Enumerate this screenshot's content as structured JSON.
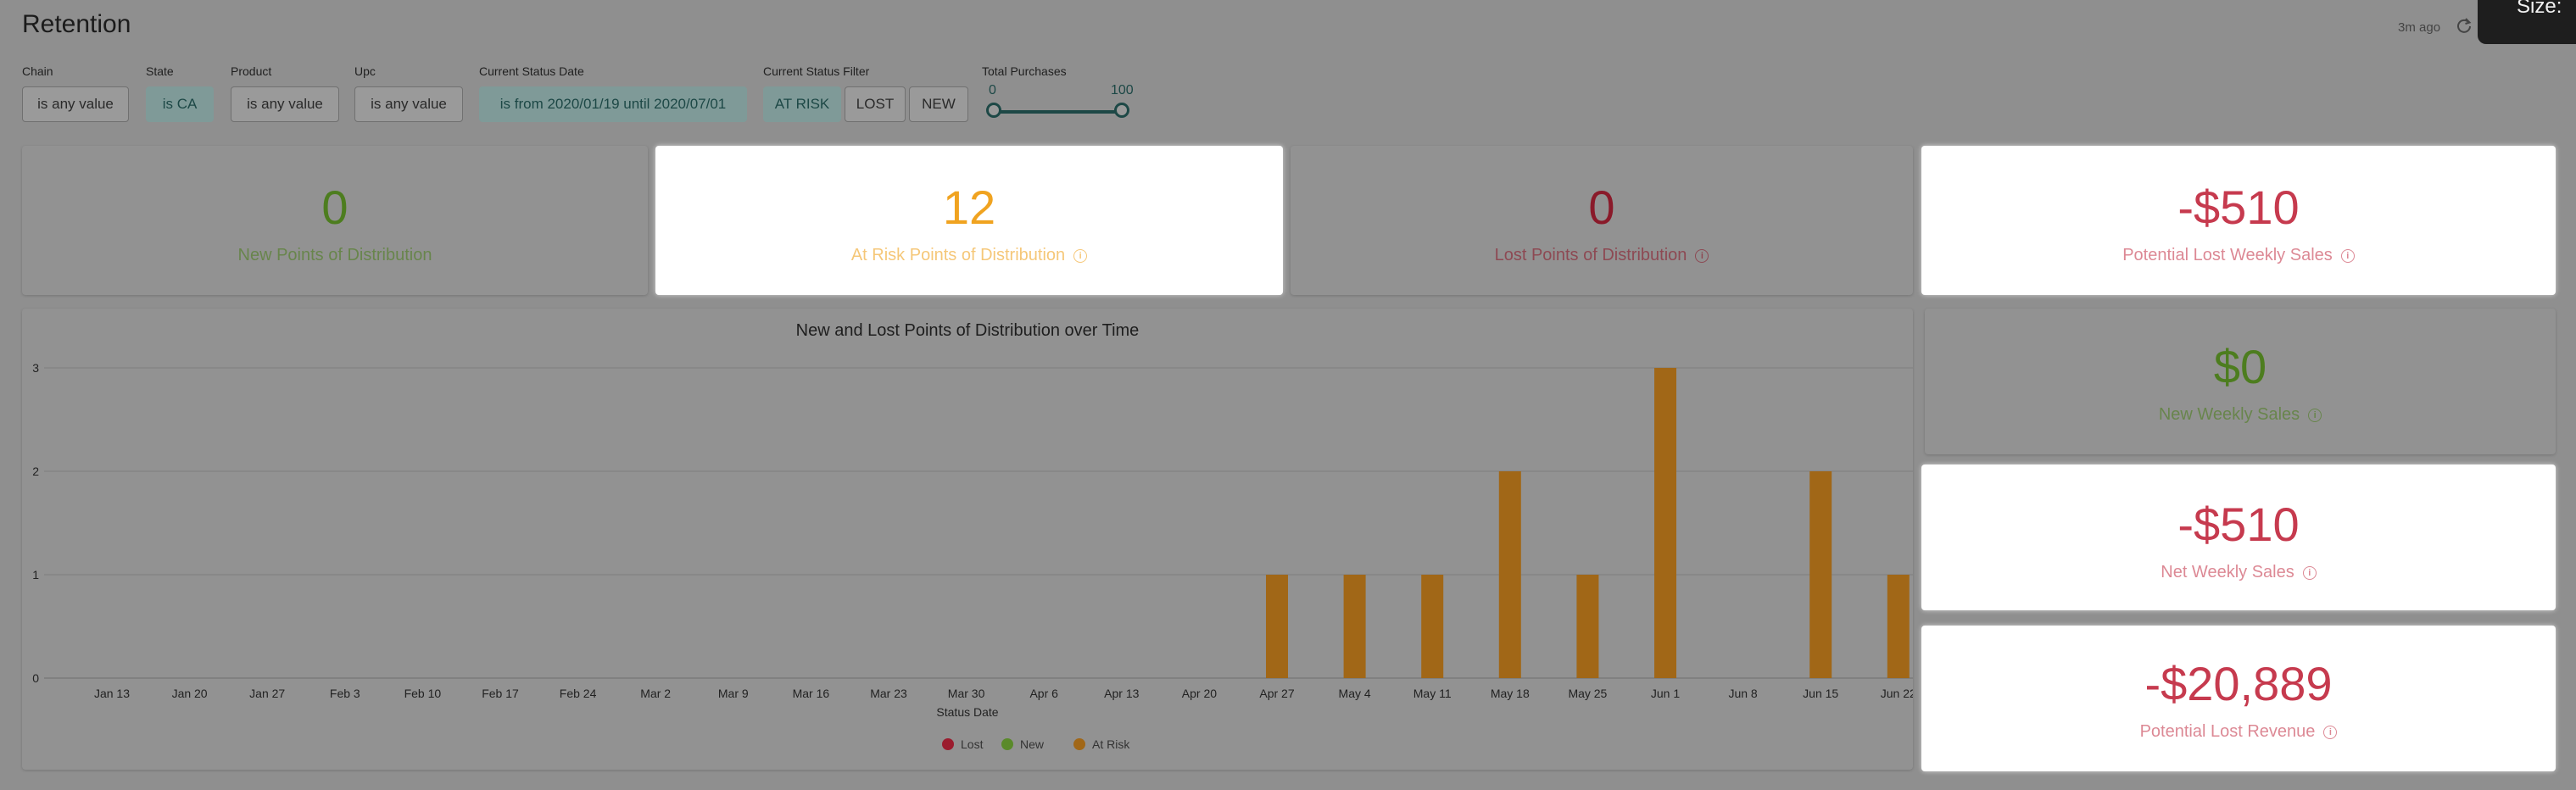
{
  "header": {
    "title": "Retention",
    "updated": "3m ago",
    "size_label": "Size:"
  },
  "filters": [
    {
      "label": "Chain",
      "value": "is any value"
    },
    {
      "label": "State",
      "value": "is CA"
    },
    {
      "label": "Product",
      "value": "is any value"
    },
    {
      "label": "Upc",
      "value": "is any value"
    },
    {
      "label": "Current Status Date",
      "value": "is from 2020/01/19 until 2020/07/01"
    },
    {
      "label": "Current Status Filter",
      "options": [
        "AT RISK",
        "LOST",
        "NEW"
      ],
      "selected": "AT RISK"
    },
    {
      "label": "Total Purchases",
      "min": "0",
      "max": "100"
    }
  ],
  "kpis": [
    {
      "value": "0",
      "label": "New Points of Distribution",
      "color": "#4d7d1f"
    },
    {
      "value": "12",
      "label": "At Risk Points of Distribution",
      "color": "#f0a320"
    },
    {
      "value": "0",
      "label": "Lost Points of Distribution",
      "color": "#8a1a2a"
    },
    {
      "value": "-$510",
      "label": "Potential Lost Weekly Sales",
      "color": "#c63a4e"
    },
    {
      "value": "$0",
      "label": "New Weekly Sales",
      "color": "#4d7d1f"
    },
    {
      "value": "-$510",
      "label": "Net Weekly Sales",
      "color": "#c63a4e"
    },
    {
      "value": "-$20,889",
      "label": "Potential Lost Revenue",
      "color": "#c63a4e"
    }
  ],
  "colors": {
    "lost": "#9b1c2e",
    "new": "#5a8a2a",
    "at_risk": "#a16717"
  },
  "chart_data": {
    "type": "bar",
    "title": "New and Lost Points of Distribution over Time",
    "xlabel": "Status Date",
    "ylabel": "",
    "ylim": [
      0,
      3
    ],
    "yticks": [
      "0",
      "1",
      "2",
      "3"
    ],
    "categories": [
      "Jan 13",
      "Jan 20",
      "Jan 27",
      "Feb 3",
      "Feb 10",
      "Feb 17",
      "Feb 24",
      "Mar 2",
      "Mar 9",
      "Mar 16",
      "Mar 23",
      "Mar 30",
      "Apr 6",
      "Apr 13",
      "Apr 20",
      "Apr 27",
      "May 4",
      "May 11",
      "May 18",
      "May 25",
      "Jun 1",
      "Jun 8",
      "Jun 15",
      "Jun 22"
    ],
    "series": [
      {
        "name": "Lost",
        "values": [
          0,
          0,
          0,
          0,
          0,
          0,
          0,
          0,
          0,
          0,
          0,
          0,
          0,
          0,
          0,
          0,
          0,
          0,
          0,
          0,
          0,
          0,
          0,
          0
        ]
      },
      {
        "name": "New",
        "values": [
          0,
          0,
          0,
          0,
          0,
          0,
          0,
          0,
          0,
          0,
          0,
          0,
          0,
          0,
          0,
          0,
          0,
          0,
          0,
          0,
          0,
          0,
          0,
          0
        ]
      },
      {
        "name": "At Risk",
        "values": [
          0,
          0,
          0,
          0,
          0,
          0,
          0,
          0,
          0,
          0,
          0,
          0,
          0,
          0,
          0,
          1,
          1,
          1,
          2,
          1,
          3,
          0,
          2,
          1
        ]
      }
    ],
    "legend": "bottom-center"
  }
}
